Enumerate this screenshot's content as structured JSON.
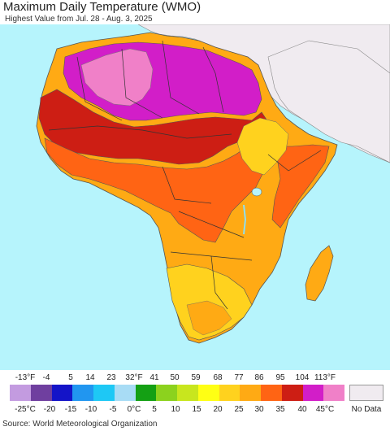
{
  "header": {
    "title": "Maximum Daily Temperature (WMO)",
    "subtitle": "Highest Value from Jul. 28 - Aug. 3, 2025"
  },
  "legend": {
    "fahrenheit_ticks": [
      "-13°F",
      "-4",
      "5",
      "14",
      "23",
      "32°F",
      "41",
      "50",
      "59",
      "68",
      "77",
      "86",
      "95",
      "104",
      "113°F"
    ],
    "celsius_ticks": [
      "-25°C",
      "-20",
      "-15",
      "-10",
      "-5",
      "0°C",
      "5",
      "10",
      "15",
      "20",
      "25",
      "30",
      "35",
      "40",
      "45°C"
    ],
    "colors": [
      "#c39be0",
      "#6f3f9f",
      "#1414c8",
      "#2196f0",
      "#1ec8f5",
      "#a8dcf5",
      "#14a014",
      "#8cd21e",
      "#c8e61e",
      "#ffff14",
      "#ffd21e",
      "#ffaa14",
      "#ff6414",
      "#cd1e14",
      "#d21ec8",
      "#f080c8"
    ],
    "no_data_label": "No Data",
    "no_data_color": "#f0ebf0"
  },
  "map": {
    "ocean_color": "#b6f4fc",
    "outside_region_color": "#f0ebf0"
  },
  "footer": {
    "source": "Source: World Meteorological Organization"
  }
}
